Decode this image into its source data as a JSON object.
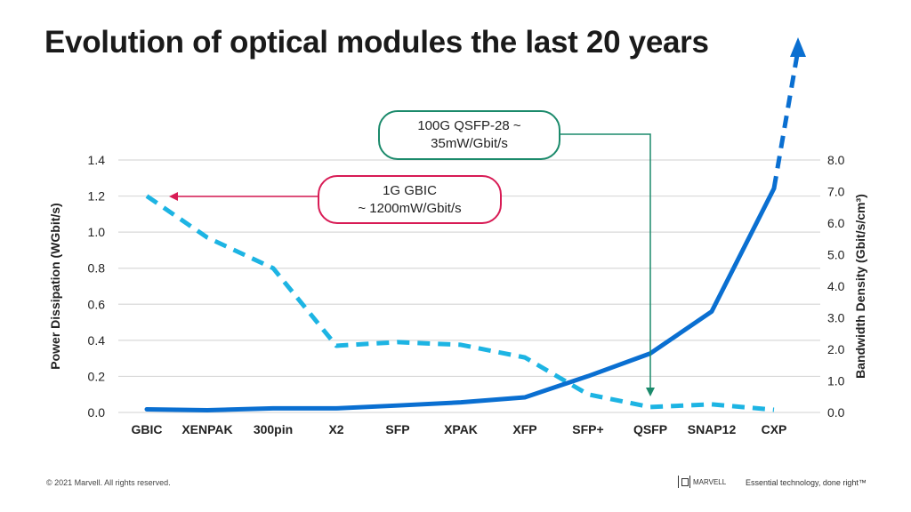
{
  "title": "Evolution of optical modules the last 20 years",
  "chart_data": {
    "type": "line",
    "categories": [
      "GBIC",
      "XENPAK",
      "300pin",
      "X2",
      "SFP",
      "XPAK",
      "XFP",
      "SFP+",
      "QSFP",
      "SNAP12",
      "CXP"
    ],
    "y_left": {
      "label": "Power Dissipation (WGbit/s)",
      "lim": [
        0,
        1.4
      ],
      "ticks": [
        "0.0",
        "0.2",
        "0.4",
        "0.6",
        "0.8",
        "1.0",
        "1.2",
        "1.4"
      ]
    },
    "y_right": {
      "label": "Bandwidth Density (Gbit/s/cm³)",
      "lim": [
        0,
        8
      ],
      "ticks": [
        "0.0",
        "1.0",
        "2.0",
        "3.0",
        "4.0",
        "5.0",
        "6.0",
        "7.0",
        "8.0"
      ]
    },
    "grid": true,
    "series": [
      {
        "axis": "left",
        "style": "dashed",
        "color": "#1db4e3",
        "values": [
          1.2,
          0.97,
          0.8,
          0.37,
          0.39,
          0.375,
          0.305,
          0.1,
          0.03,
          0.045,
          0.015
        ]
      },
      {
        "axis": "right",
        "style": "solid",
        "color": "#0a6fd1",
        "values": [
          0.1,
          0.07,
          0.13,
          0.13,
          0.22,
          0.32,
          0.48,
          1.15,
          1.87,
          3.2,
          7.1
        ],
        "trend_arrow": "dashed up beyond axis"
      }
    ],
    "annotations": [
      {
        "lines": [
          "1G GBIC",
          "~ 1200mW/Gbit/s"
        ],
        "color": "#d81b55",
        "points_to": "GBIC"
      },
      {
        "lines": [
          "100G QSFP-28 ~",
          "35mW/Gbit/s"
        ],
        "color": "#1b8a6b",
        "points_to": "QSFP"
      }
    ]
  },
  "footer": {
    "copyright": "© 2021 Marvell. All rights reserved.",
    "logo_text": "MARVELL",
    "tagline": "Essential technology, done right™"
  }
}
